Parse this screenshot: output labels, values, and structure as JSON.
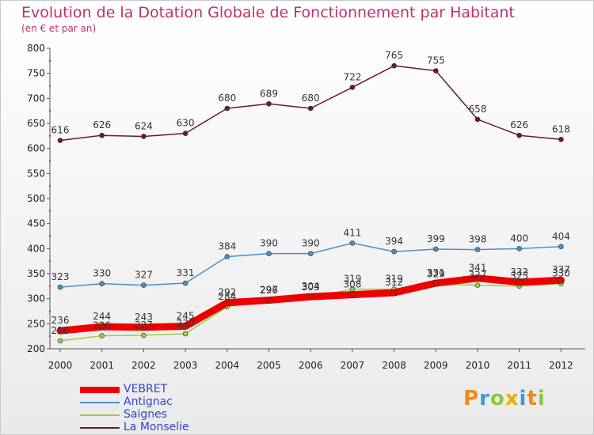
{
  "header": {
    "title": "Evolution de la Dotation Globale de Fonctionnement par Habitant",
    "subtitle": "(en € et par an)"
  },
  "logo": {
    "text": "Proxiti",
    "colors": [
      "#f08a1c",
      "#3d9ad6",
      "#8cc63f",
      "#e8b000",
      "#3d9ad6",
      "#f08a1c",
      "#8cc63f"
    ]
  },
  "chart_data": {
    "type": "line",
    "title": "Evolution de la Dotation Globale de Fonctionnement par Habitant",
    "subtitle": "(en € et par an)",
    "x": [
      "2000",
      "2001",
      "2002",
      "2003",
      "2004",
      "2005",
      "2006",
      "2007",
      "2008",
      "2009",
      "2010",
      "2011",
      "2012"
    ],
    "ylim": [
      200,
      800
    ],
    "yticks": [
      200,
      250,
      300,
      350,
      400,
      450,
      500,
      550,
      600,
      650,
      700,
      750,
      800
    ],
    "grid": false,
    "legend_position": "bottom-left",
    "series": [
      {
        "name": "VEBRET",
        "color": "#ee0000",
        "values": [
          236,
          244,
          243,
          245,
          292,
          297,
          304,
          308,
          312,
          331,
          341,
          333,
          337
        ]
      },
      {
        "name": "Antignac",
        "color": "#4a90c8",
        "values": [
          323,
          330,
          327,
          331,
          384,
          390,
          390,
          411,
          394,
          399,
          398,
          400,
          404
        ]
      },
      {
        "name": "Saignes",
        "color": "#99cc44",
        "values": [
          216,
          226,
          227,
          230,
          284,
          296,
          303,
          319,
          319,
          329,
          327,
          325,
          330
        ]
      },
      {
        "name": "La Monselie",
        "color": "#6b1a24",
        "values": [
          616,
          626,
          624,
          630,
          680,
          689,
          680,
          722,
          765,
          755,
          658,
          626,
          618
        ]
      }
    ]
  }
}
